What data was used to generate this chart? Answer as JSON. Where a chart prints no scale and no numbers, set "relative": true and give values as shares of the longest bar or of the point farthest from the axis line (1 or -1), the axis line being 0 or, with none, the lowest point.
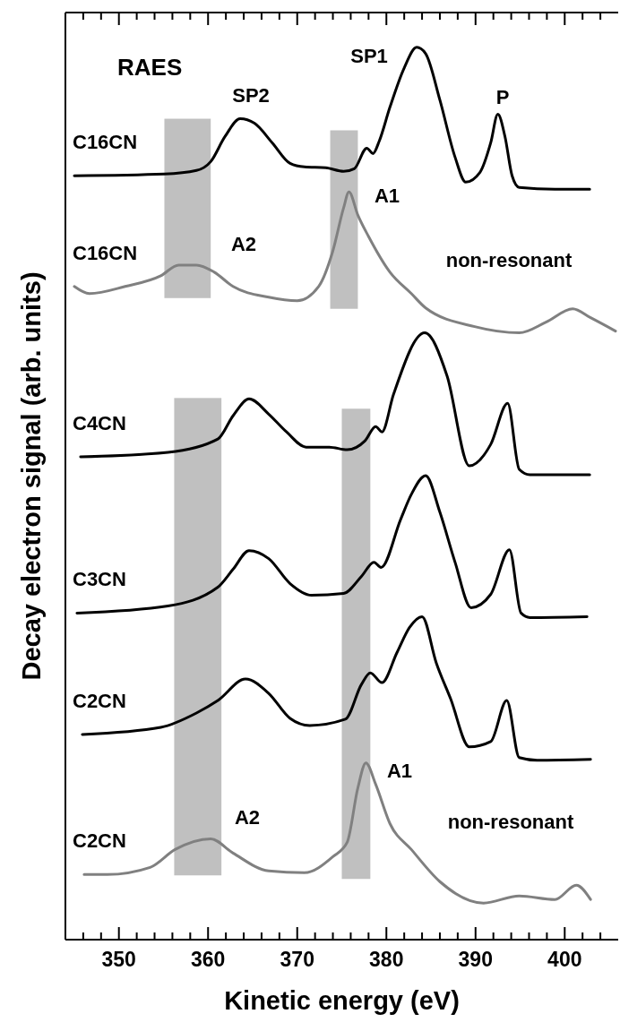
{
  "chart_data": {
    "type": "line",
    "title": "RAES",
    "xlabel": "Kinetic energy (eV)",
    "ylabel": "Decay electron signal (arb. units)",
    "relative": true,
    "xlim": [
      344,
      406
    ],
    "xticks": [
      {
        "value": 344,
        "label": null
      },
      {
        "value": 346,
        "label": null
      },
      {
        "value": 348,
        "label": null
      },
      350,
      {
        "value": 352,
        "label": null
      },
      {
        "value": 354,
        "label": null
      },
      {
        "value": 356,
        "label": null
      },
      {
        "value": 358,
        "label": null
      },
      360,
      {
        "value": 362,
        "label": null
      },
      {
        "value": 364,
        "label": null
      },
      {
        "value": 366,
        "label": null
      },
      {
        "value": 368,
        "label": null
      },
      370,
      {
        "value": 372,
        "label": null
      },
      {
        "value": 374,
        "label": null
      },
      {
        "value": 376,
        "label": null
      },
      {
        "value": 378,
        "label": null
      },
      380,
      {
        "value": 382,
        "label": null
      },
      {
        "value": 384,
        "label": null
      },
      {
        "value": 386,
        "label": null
      },
      {
        "value": 388,
        "label": null
      },
      390,
      {
        "value": 392,
        "label": null
      },
      {
        "value": 394,
        "label": null
      },
      {
        "value": 396,
        "label": null
      },
      {
        "value": 398,
        "label": null
      },
      400,
      {
        "value": 402,
        "label": null
      },
      {
        "value": 404,
        "label": null
      }
    ],
    "grid": false,
    "marker": "none",
    "line_style": "solid",
    "series": [
      {
        "name": "C16CN",
        "color": "#000000",
        "x": [
          345.0,
          355.1,
          358.7,
          360.3,
          361.9,
          363.6,
          365.2,
          367.2,
          369.2,
          370.8,
          373.2,
          375.2,
          376.4,
          377.8,
          378.5,
          379.2,
          380.4,
          382.0,
          383.4,
          384.4,
          386.0,
          387.7,
          388.9,
          390.5,
          391.7,
          392.5,
          393.3,
          394.1,
          394.9,
          398.9,
          402.8
        ],
        "values": [
          0.856,
          0.858,
          0.862,
          0.872,
          0.9,
          0.92,
          0.915,
          0.893,
          0.87,
          0.866,
          0.865,
          0.861,
          0.864,
          0.887,
          0.881,
          0.895,
          0.933,
          0.977,
          1.0,
          0.993,
          0.941,
          0.877,
          0.849,
          0.86,
          0.893,
          0.925,
          0.9,
          0.856,
          0.843,
          0.841,
          0.841
        ]
      },
      {
        "name": "C16CN",
        "color": "#808080",
        "x": [
          345.0,
          346.7,
          350.7,
          354.7,
          356.7,
          358.7,
          360.7,
          362.8,
          366.8,
          370.0,
          372.4,
          374.0,
          375.2,
          375.8,
          376.8,
          378.0,
          380.4,
          382.8,
          384.4,
          389.9,
          394.9,
          397.9,
          400.9,
          402.9,
          405.7
        ],
        "values": [
          0.732,
          0.724,
          0.732,
          0.744,
          0.756,
          0.756,
          0.748,
          0.732,
          0.72,
          0.716,
          0.732,
          0.772,
          0.82,
          0.838,
          0.812,
          0.788,
          0.748,
          0.724,
          0.708,
          0.687,
          0.68,
          0.692,
          0.707,
          0.697,
          0.682
        ]
      },
      {
        "name": "C4CN",
        "color": "#000000",
        "x": [
          345.7,
          355.5,
          361.1,
          362.8,
          364.6,
          366.8,
          368.8,
          371.0,
          373.6,
          375.6,
          377.6,
          378.8,
          379.5,
          380.8,
          384.3,
          386.8,
          389.3,
          391.7,
          393.6,
          394.9,
          396.1,
          402.8
        ],
        "values": [
          0.541,
          0.546,
          0.561,
          0.587,
          0.606,
          0.589,
          0.569,
          0.552,
          0.552,
          0.549,
          0.559,
          0.575,
          0.569,
          0.611,
          0.68,
          0.632,
          0.531,
          0.555,
          0.601,
          0.527,
          0.521,
          0.521
        ]
      },
      {
        "name": "C3CN",
        "color": "#000000",
        "x": [
          345.3,
          355.5,
          361.1,
          362.8,
          364.6,
          366.8,
          369.2,
          371.6,
          375.2,
          377.2,
          378.6,
          379.4,
          381.6,
          382.8,
          384.4,
          386.0,
          387.7,
          389.5,
          391.7,
          393.8,
          395.1,
          396.1,
          402.5
        ],
        "values": [
          0.366,
          0.374,
          0.395,
          0.415,
          0.436,
          0.427,
          0.399,
          0.386,
          0.388,
          0.407,
          0.423,
          0.417,
          0.471,
          0.499,
          0.52,
          0.479,
          0.423,
          0.372,
          0.387,
          0.437,
          0.366,
          0.361,
          0.362
        ]
      },
      {
        "name": "C2CN",
        "color": "#000000",
        "x": [
          345.9,
          354.7,
          358.7,
          361.1,
          364.2,
          366.8,
          369.2,
          371.4,
          375.4,
          377.2,
          378.2,
          379.5,
          381.2,
          382.6,
          384.0,
          385.6,
          387.2,
          389.3,
          391.7,
          393.5,
          394.9,
          396.9,
          402.9
        ],
        "values": [
          0.23,
          0.238,
          0.254,
          0.268,
          0.292,
          0.276,
          0.248,
          0.24,
          0.247,
          0.286,
          0.299,
          0.288,
          0.322,
          0.35,
          0.362,
          0.31,
          0.27,
          0.216,
          0.222,
          0.268,
          0.204,
          0.201,
          0.202
        ]
      },
      {
        "name": "C2CN",
        "color": "#808080",
        "x": [
          346.1,
          348.7,
          353.5,
          356.3,
          360.3,
          362.8,
          366.8,
          370.8,
          374.0,
          375.6,
          376.8,
          377.7,
          378.8,
          380.4,
          382.8,
          386.0,
          390.9,
          394.9,
          398.9,
          401.3,
          402.9
        ],
        "values": [
          0.073,
          0.073,
          0.081,
          0.101,
          0.113,
          0.097,
          0.077,
          0.075,
          0.093,
          0.109,
          0.17,
          0.198,
          0.174,
          0.13,
          0.101,
          0.065,
          0.041,
          0.049,
          0.045,
          0.061,
          0.045
        ]
      }
    ],
    "bands": [
      {
        "axis": "x",
        "from": 355.1,
        "to": 360.3,
        "color": "#c0c0c0"
      },
      {
        "axis": "x",
        "from": 373.7,
        "to": 376.8,
        "color": "#c0c0c0"
      },
      {
        "axis": "x",
        "from": 356.2,
        "to": 361.5,
        "color": "#c0c0c0"
      },
      {
        "axis": "x",
        "from": 375.0,
        "to": 378.2,
        "color": "#c0c0c0"
      }
    ],
    "annotations": [
      "SP2",
      "SP1",
      "P",
      "A1",
      "A2",
      "non-resonant",
      "A1",
      "A2",
      "non-resonant"
    ]
  }
}
